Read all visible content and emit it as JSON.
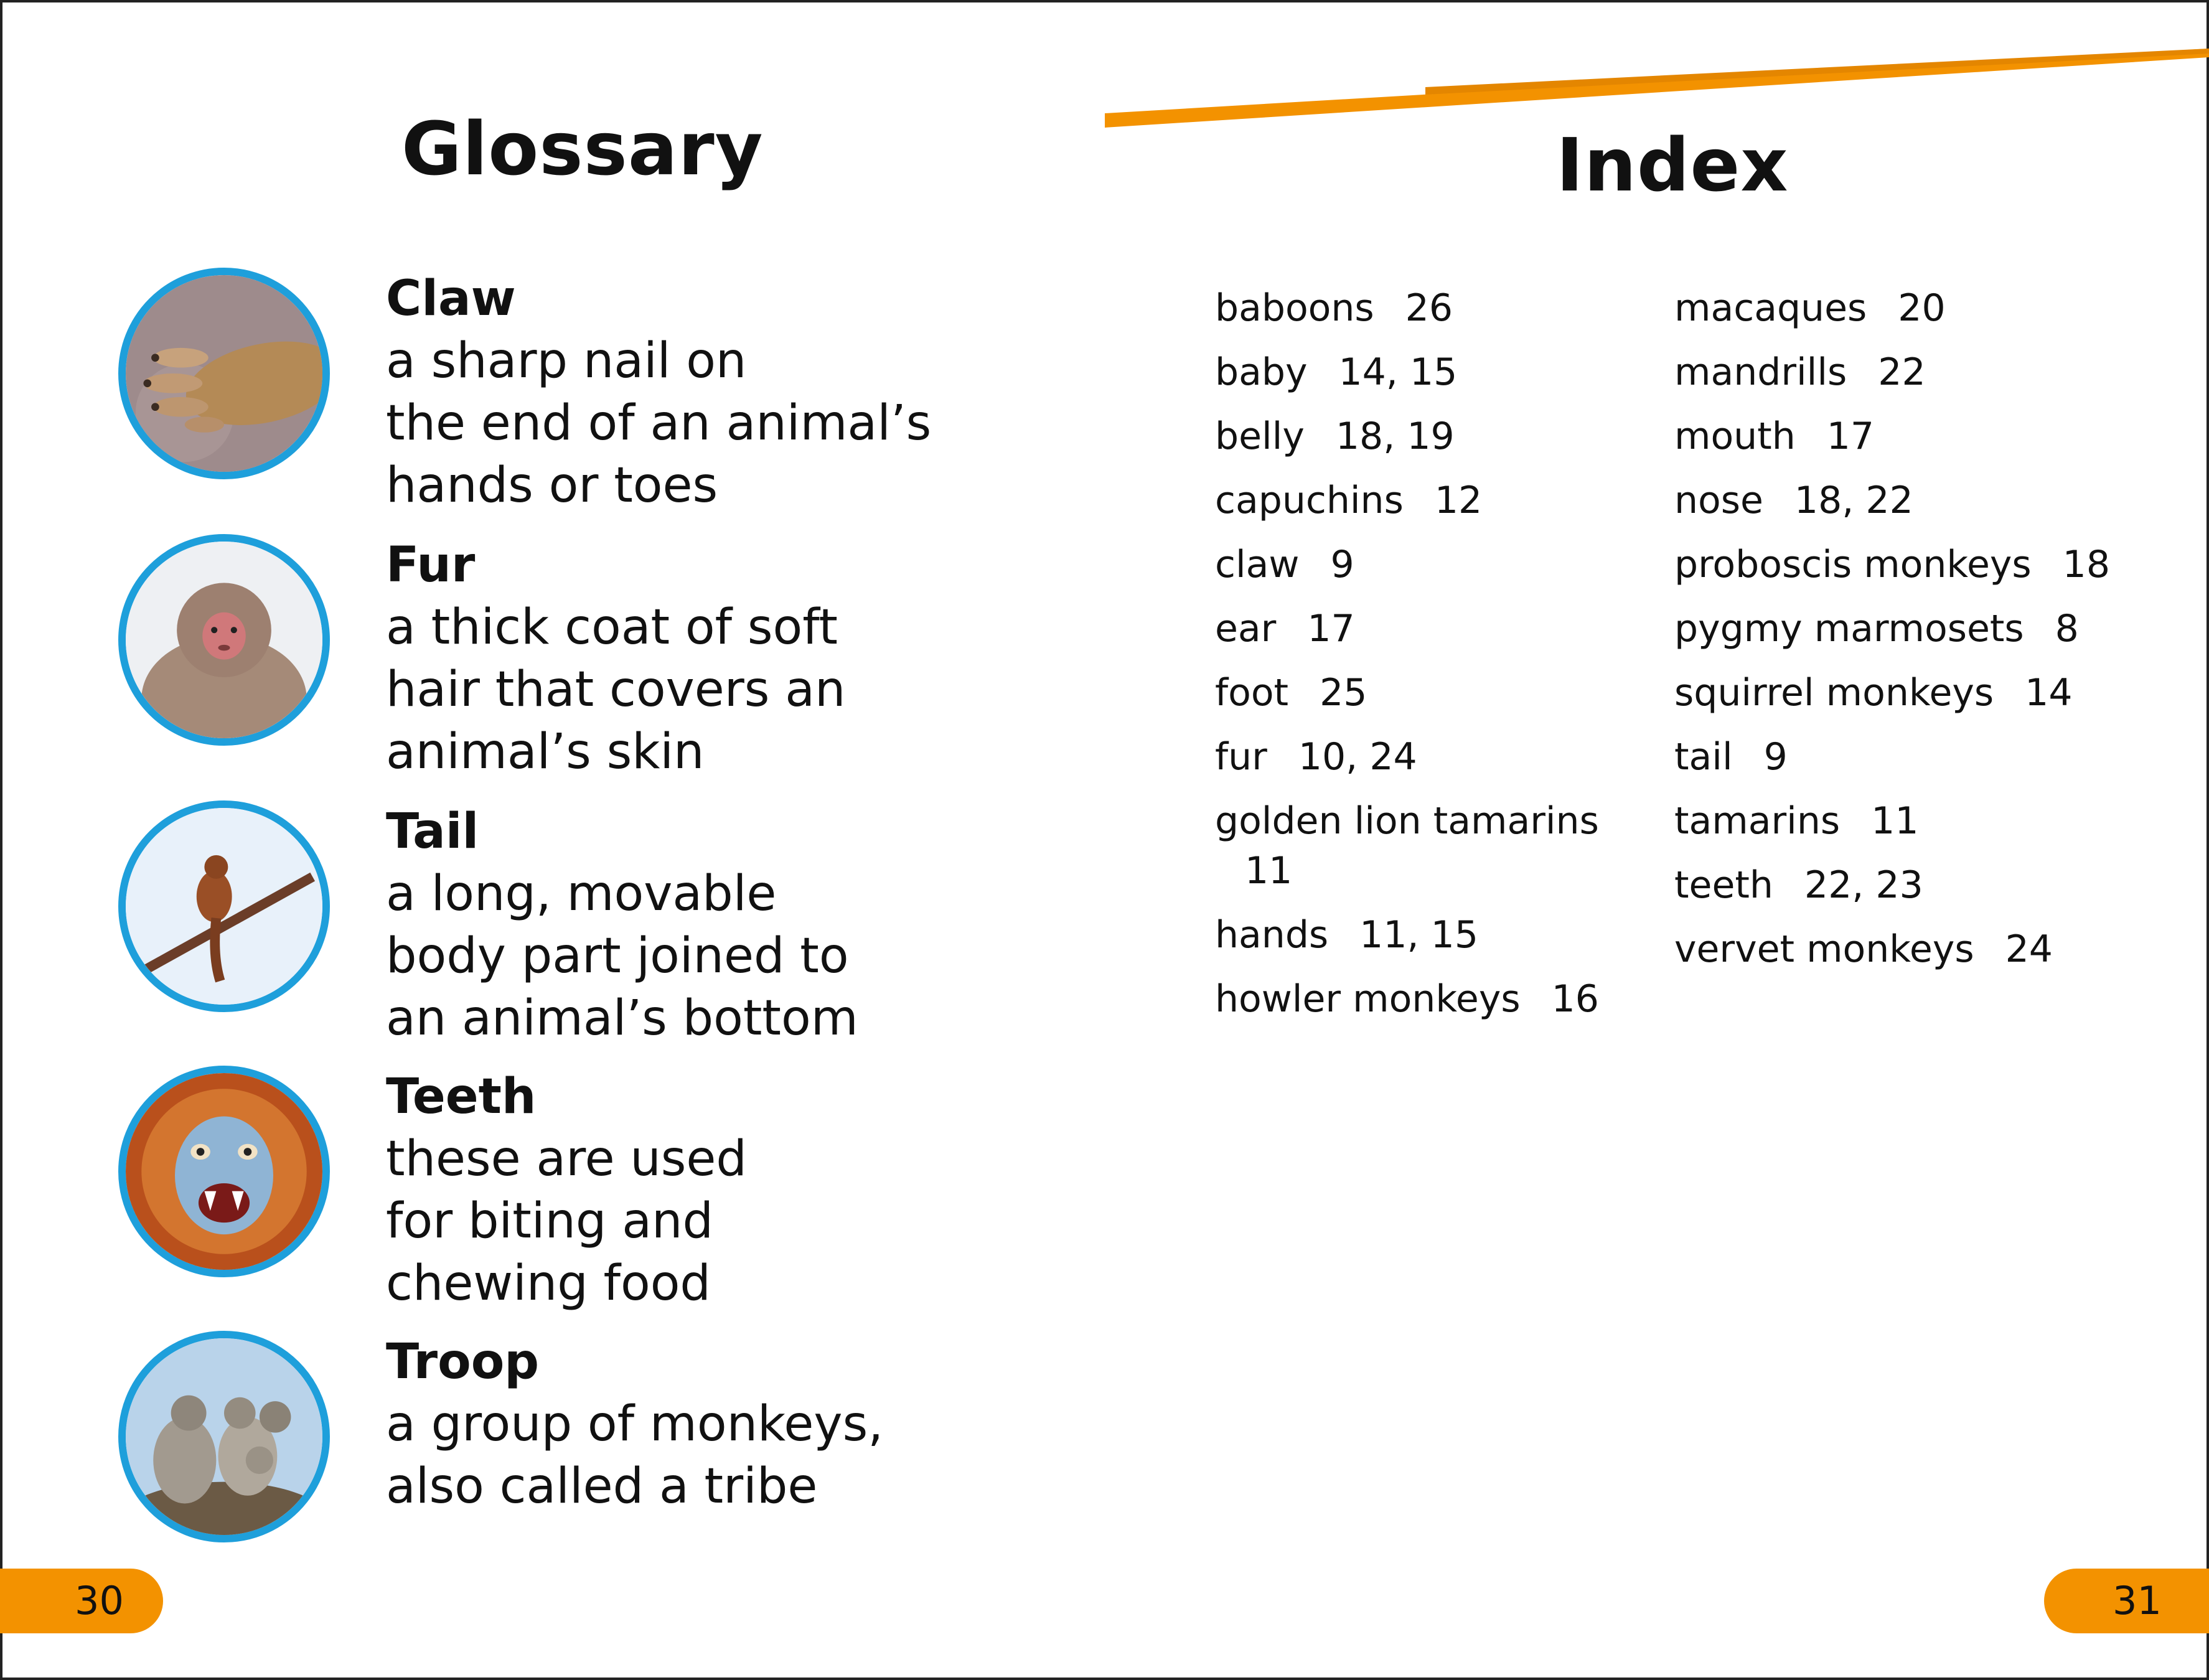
{
  "glossary": {
    "title": "Glossary",
    "entries": [
      {
        "term": "Claw",
        "definition": "a sharp nail on\nthe end of an animal’s\nhands or toes",
        "icon": "monkey-hand-photo"
      },
      {
        "term": "Fur",
        "definition": "a thick coat of soft\nhair that covers an\nanimal’s skin",
        "icon": "snow-monkey-photo"
      },
      {
        "term": "Tail",
        "definition": "a long, movable\nbody part joined to\nan animal’s bottom",
        "icon": "monkey-on-branch-photo"
      },
      {
        "term": "Teeth",
        "definition": "these are used\nfor biting and\nchewing food",
        "icon": "golden-monkey-teeth-photo"
      },
      {
        "term": "Troop",
        "definition": "a group of monkeys,\nalso called a tribe",
        "icon": "monkey-troop-photo"
      }
    ]
  },
  "index": {
    "title": "Index",
    "column1": [
      {
        "word": "baboons",
        "pages": "26"
      },
      {
        "word": "baby",
        "pages": "14, 15"
      },
      {
        "word": "belly",
        "pages": "18, 19"
      },
      {
        "word": "capuchins",
        "pages": "12"
      },
      {
        "word": "claw",
        "pages": "9"
      },
      {
        "word": "ear",
        "pages": "17"
      },
      {
        "word": "foot",
        "pages": "25"
      },
      {
        "word": "fur",
        "pages": "10, 24"
      },
      {
        "word": "golden lion tamarins",
        "pages": "11"
      },
      {
        "word": "hands",
        "pages": "11, 15"
      },
      {
        "word": "howler monkeys",
        "pages": "16"
      }
    ],
    "column2": [
      {
        "word": "macaques",
        "pages": "20"
      },
      {
        "word": "mandrills",
        "pages": "22"
      },
      {
        "word": "mouth",
        "pages": "17"
      },
      {
        "word": "nose",
        "pages": "18, 22"
      },
      {
        "word": "proboscis monkeys",
        "pages": "18"
      },
      {
        "word": "pygmy marmosets",
        "pages": "8"
      },
      {
        "word": "squirrel monkeys",
        "pages": "14"
      },
      {
        "word": "tail",
        "pages": "9"
      },
      {
        "word": "tamarins",
        "pages": "11"
      },
      {
        "word": "teeth",
        "pages": "22, 23"
      },
      {
        "word": "vervet monkeys",
        "pages": "24"
      }
    ]
  },
  "page_numbers": {
    "left": "30",
    "right": "31"
  },
  "colors": {
    "accent": "#f39200",
    "circle_border": "#1e9fdb"
  }
}
